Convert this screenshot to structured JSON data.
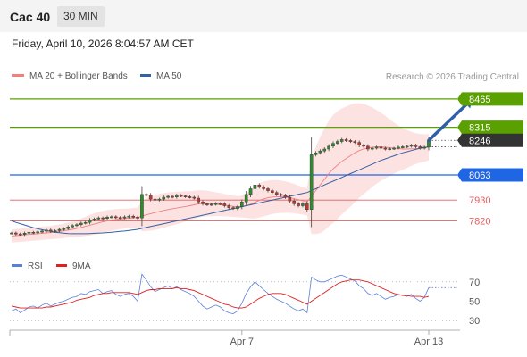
{
  "header": {
    "symbol": "Cac 40",
    "interval": "30 MIN"
  },
  "datetime": "Friday, April 10, 2026 8:04:57 AM CET",
  "copyright": "Research © 2026 Trading Central",
  "colors": {
    "price": "#555555",
    "bollinger": "#fde2e2",
    "ma20": "#f08080",
    "ma50": "#3560a3",
    "green": "#5aa000",
    "blue": "#1f66e5",
    "red": "#e06060",
    "rsi": "#5b80d8",
    "ma9": "#e02020",
    "arrow": "#2e5fa8",
    "current": "#333333"
  },
  "chart_data": [
    {
      "type": "line",
      "ylim": [
        7690,
        8540
      ],
      "x_ticks": [
        {
          "index": 53,
          "label": "Apr 7"
        },
        {
          "index": 96,
          "label": "Apr 13"
        }
      ],
      "legend": [
        {
          "name": "MA 20 + Bollinger Bands",
          "color": "#f08080"
        },
        {
          "name": "MA 50",
          "color": "#3560a3"
        }
      ],
      "price": [
        7756,
        7751,
        7748,
        7755,
        7760,
        7757,
        7762,
        7766,
        7771,
        7764,
        7768,
        7775,
        7779,
        7788,
        7795,
        7800,
        7808,
        7812,
        7825,
        7830,
        7836,
        7833,
        7840,
        7842,
        7838,
        7836,
        7841,
        7845,
        7840,
        7835,
        7960,
        7955,
        7935,
        7930,
        7935,
        7945,
        7950,
        7946,
        7955,
        7952,
        7948,
        7945,
        7940,
        7920,
        7910,
        7905,
        7908,
        7912,
        7910,
        7900,
        7890,
        7885,
        7895,
        7920,
        7960,
        7990,
        8010,
        8000,
        7990,
        7980,
        7970,
        7960,
        7955,
        7945,
        7925,
        7910,
        7900,
        7910,
        7880,
        8170,
        8180,
        8190,
        8200,
        8215,
        8230,
        8240,
        8250,
        8245,
        8240,
        8235,
        8220,
        8215,
        8200,
        8205,
        8210,
        8205,
        8200,
        8202,
        8205,
        8210,
        8212,
        8215,
        8220,
        8212,
        8205,
        8210,
        8246
      ],
      "ma20": [
        7740,
        7742,
        7744,
        7746,
        7748,
        7750,
        7752,
        7754,
        7756,
        7758,
        7761,
        7764,
        7767,
        7771,
        7775,
        7780,
        7785,
        7791,
        7797,
        7803,
        7809,
        7815,
        7820,
        7824,
        7827,
        7830,
        7832,
        7834,
        7836,
        7838,
        7845,
        7852,
        7858,
        7864,
        7870,
        7875,
        7880,
        7884,
        7888,
        7892,
        7896,
        7900,
        7905,
        7910,
        7912,
        7912,
        7910,
        7908,
        7906,
        7903,
        7900,
        7897,
        7895,
        7896,
        7900,
        7908,
        7918,
        7928,
        7936,
        7942,
        7946,
        7948,
        7948,
        7946,
        7943,
        7938,
        7932,
        7926,
        7920,
        7950,
        7980,
        8010,
        8040,
        8070,
        8095,
        8115,
        8135,
        8150,
        8165,
        8180,
        8192,
        8200,
        8205,
        8210,
        8212,
        8212,
        8210,
        8207,
        8205,
        8203,
        8200,
        8200,
        8201,
        8202,
        8204,
        8206,
        8210
      ],
      "boll_width": [
        35,
        35,
        35,
        35,
        35,
        35,
        35,
        35,
        35,
        35,
        36,
        37,
        38,
        40,
        42,
        45,
        48,
        51,
        54,
        57,
        58,
        58,
        57,
        56,
        55,
        54,
        53,
        52,
        52,
        52,
        80,
        86,
        90,
        92,
        93,
        92,
        90,
        88,
        86,
        83,
        80,
        77,
        74,
        72,
        70,
        68,
        65,
        63,
        61,
        59,
        57,
        56,
        56,
        58,
        65,
        75,
        85,
        90,
        92,
        92,
        90,
        88,
        86,
        83,
        80,
        78,
        75,
        73,
        72,
        200,
        230,
        255,
        270,
        280,
        285,
        285,
        280,
        275,
        270,
        262,
        250,
        240,
        225,
        210,
        195,
        180,
        165,
        150,
        135,
        122,
        110,
        100,
        90,
        82,
        76,
        72,
        70
      ],
      "ma50": [
        7820,
        7812,
        7805,
        7798,
        7791,
        7784,
        7778,
        7773,
        7768,
        7764,
        7760,
        7757,
        7755,
        7753,
        7752,
        7752,
        7752,
        7752,
        7753,
        7754,
        7755,
        7756,
        7758,
        7760,
        7762,
        7764,
        7766,
        7769,
        7772,
        7775,
        7780,
        7785,
        7790,
        7795,
        7800,
        7805,
        7810,
        7815,
        7820,
        7825,
        7830,
        7835,
        7840,
        7845,
        7850,
        7855,
        7860,
        7865,
        7870,
        7875,
        7880,
        7885,
        7890,
        7895,
        7900,
        7905,
        7910,
        7915,
        7920,
        7925,
        7930,
        7935,
        7940,
        7945,
        7950,
        7955,
        7960,
        7965,
        7970,
        7980,
        7990,
        8000,
        8010,
        8020,
        8030,
        8040,
        8050,
        8060,
        8070,
        8080,
        8090,
        8100,
        8110,
        8120,
        8130,
        8140,
        8148,
        8156,
        8164,
        8172,
        8180,
        8186,
        8192,
        8198,
        8204,
        8208,
        8212
      ],
      "levels": [
        {
          "value": 8465,
          "label": "8465",
          "kind": "green"
        },
        {
          "value": 8315,
          "label": "8315",
          "kind": "green"
        },
        {
          "value": 8246,
          "label": "8246",
          "kind": "current"
        },
        {
          "value": 8063,
          "label": "8063",
          "kind": "blue"
        },
        {
          "value": 7930,
          "label": "7930",
          "kind": "red"
        },
        {
          "value": 7820,
          "label": "7820",
          "kind": "red"
        }
      ],
      "arrow": {
        "from_index": 96,
        "from_value": 8246,
        "to_index": 106,
        "to_value": 8465
      }
    },
    {
      "type": "line",
      "ylim": [
        20,
        80
      ],
      "legend": [
        {
          "name": "RSI",
          "color": "#5b80d8"
        },
        {
          "name": "9MA",
          "color": "#e02020"
        }
      ],
      "y_ticks": [
        {
          "value": 70,
          "label": "70"
        },
        {
          "value": 50,
          "label": "50"
        },
        {
          "value": 30,
          "label": "30"
        }
      ],
      "rsi": [
        40,
        42,
        38,
        41,
        44,
        45,
        43,
        46,
        48,
        45,
        47,
        49,
        50,
        52,
        54,
        55,
        58,
        57,
        60,
        61,
        62,
        58,
        60,
        61,
        57,
        55,
        57,
        58,
        55,
        50,
        78,
        72,
        65,
        60,
        62,
        64,
        66,
        63,
        65,
        62,
        60,
        58,
        55,
        50,
        45,
        42,
        44,
        46,
        44,
        40,
        38,
        37,
        40,
        48,
        58,
        65,
        70,
        66,
        62,
        58,
        55,
        52,
        50,
        48,
        45,
        42,
        40,
        42,
        38,
        75,
        72,
        70,
        70,
        72,
        74,
        76,
        77,
        75,
        73,
        71,
        66,
        63,
        58,
        56,
        58,
        55,
        52,
        54,
        55,
        57,
        56,
        55,
        57,
        53,
        50,
        54,
        64
      ],
      "ma9": [
        45,
        44,
        43,
        43,
        43,
        43,
        43,
        43,
        44,
        44,
        45,
        46,
        47,
        48,
        49,
        51,
        52,
        53,
        54,
        56,
        57,
        58,
        58,
        59,
        59,
        59,
        59,
        59,
        58,
        57,
        59,
        61,
        62,
        62,
        63,
        63,
        63,
        63,
        64,
        63,
        63,
        62,
        61,
        59,
        57,
        55,
        53,
        51,
        49,
        47,
        46,
        44,
        43,
        43,
        44,
        47,
        50,
        53,
        55,
        57,
        58,
        58,
        58,
        57,
        55,
        53,
        51,
        49,
        47,
        50,
        53,
        56,
        59,
        62,
        65,
        68,
        70,
        71,
        72,
        72,
        72,
        71,
        70,
        68,
        66,
        64,
        62,
        60,
        58,
        57,
        56,
        56,
        55,
        55,
        55,
        54,
        55
      ]
    }
  ]
}
